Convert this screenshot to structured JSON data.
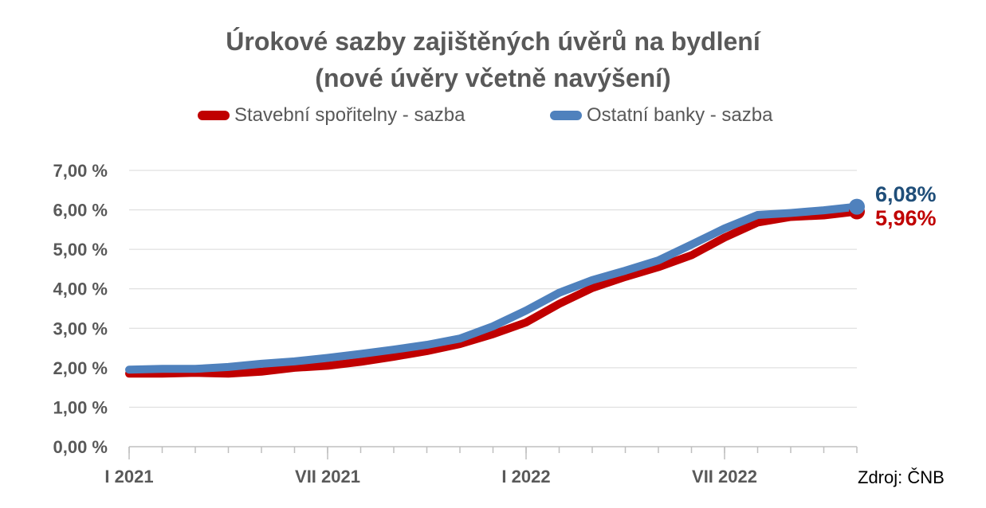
{
  "chart_data": {
    "type": "line",
    "title": "Úrokové sazby zajištěných úvěrů na bydlení",
    "subtitle": "(nové úvěry včetně navýšení)",
    "x_tick_labels": [
      "I 2021",
      "VII 2021",
      "I 2022",
      "VII 2022"
    ],
    "x_tick_positions": [
      0,
      6,
      12,
      18
    ],
    "x_count": 23,
    "ylim": [
      0,
      7
    ],
    "y_ticks": [
      0,
      1,
      2,
      3,
      4,
      5,
      6,
      7
    ],
    "y_tick_labels": [
      "0,00 %",
      "1,00 %",
      "2,00 %",
      "3,00 %",
      "4,00 %",
      "5,00 %",
      "6,00 %",
      "7,00 %"
    ],
    "grid": true,
    "legend_position": "top",
    "series": [
      {
        "name": "Stavební spořitelny - sazba",
        "color": "#c00000",
        "values": [
          1.85,
          1.85,
          1.87,
          1.85,
          1.9,
          2.0,
          2.05,
          2.15,
          2.28,
          2.42,
          2.6,
          2.85,
          3.15,
          3.62,
          4.02,
          4.3,
          4.55,
          4.85,
          5.3,
          5.68,
          5.82,
          5.86,
          5.96
        ],
        "end_label": "5,96%"
      },
      {
        "name": "Ostatní banky - sazba",
        "color": "#4f81bd",
        "values": [
          1.95,
          1.97,
          1.97,
          2.02,
          2.1,
          2.16,
          2.25,
          2.35,
          2.46,
          2.58,
          2.74,
          3.05,
          3.45,
          3.9,
          4.22,
          4.46,
          4.72,
          5.12,
          5.53,
          5.87,
          5.92,
          5.99,
          6.08
        ],
        "end_label": "6,08%"
      }
    ],
    "source": "Zdroj: ČNB"
  }
}
